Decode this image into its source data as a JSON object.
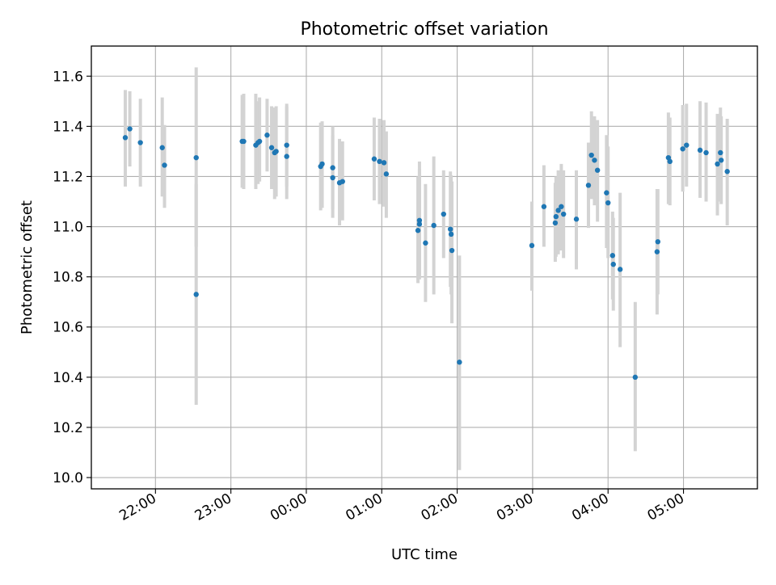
{
  "chart_data": {
    "type": "scatter",
    "title": "Photometric offset variation",
    "xlabel": "UTC time",
    "ylabel": "Photometric offset",
    "grid": true,
    "x_axis": {
      "unit": "hours since 00:00 UTC",
      "range": [
        -2.85,
        5.98
      ]
    },
    "xticks": [
      {
        "value": -2,
        "label": "22:00"
      },
      {
        "value": -1,
        "label": "23:00"
      },
      {
        "value": 0,
        "label": "00:00"
      },
      {
        "value": 1,
        "label": "01:00"
      },
      {
        "value": 2,
        "label": "02:00"
      },
      {
        "value": 3,
        "label": "03:00"
      },
      {
        "value": 4,
        "label": "04:00"
      },
      {
        "value": 5,
        "label": "05:00"
      }
    ],
    "ylim": [
      9.955,
      11.72
    ],
    "yticks": [
      {
        "value": 10.0,
        "label": "10.0"
      },
      {
        "value": 10.2,
        "label": "10.2"
      },
      {
        "value": 10.4,
        "label": "10.4"
      },
      {
        "value": 10.6,
        "label": "10.6"
      },
      {
        "value": 10.8,
        "label": "10.8"
      },
      {
        "value": 11.0,
        "label": "11.0"
      },
      {
        "value": 11.2,
        "label": "11.2"
      },
      {
        "value": 11.4,
        "label": "11.4"
      },
      {
        "value": 11.6,
        "label": "11.6"
      }
    ],
    "colors": {
      "marker": "#1f77b4",
      "errorbar": "#d3d3d3",
      "grid": "#b0b0b0"
    },
    "points": [
      {
        "x": -2.4,
        "y": 11.355,
        "lo": 11.16,
        "hi": 11.545
      },
      {
        "x": -2.34,
        "y": 11.39,
        "lo": 11.24,
        "hi": 11.54
      },
      {
        "x": -2.2,
        "y": 11.335,
        "lo": 11.16,
        "hi": 11.51
      },
      {
        "x": -1.91,
        "y": 11.315,
        "lo": 11.12,
        "hi": 11.515
      },
      {
        "x": -1.88,
        "y": 11.245,
        "lo": 11.075,
        "hi": 11.405
      },
      {
        "x": -1.46,
        "y": 11.275,
        "lo": 10.92,
        "hi": 11.635
      },
      {
        "x": -1.46,
        "y": 10.73,
        "lo": 10.29,
        "hi": 11.17
      },
      {
        "x": -0.85,
        "y": 11.34,
        "lo": 11.155,
        "hi": 11.525
      },
      {
        "x": -0.83,
        "y": 11.34,
        "lo": 11.15,
        "hi": 11.53
      },
      {
        "x": -0.67,
        "y": 11.325,
        "lo": 11.15,
        "hi": 11.53
      },
      {
        "x": -0.64,
        "y": 11.335,
        "lo": 11.17,
        "hi": 11.5
      },
      {
        "x": -0.62,
        "y": 11.34,
        "lo": 11.18,
        "hi": 11.515
      },
      {
        "x": -0.52,
        "y": 11.365,
        "lo": 11.22,
        "hi": 11.51
      },
      {
        "x": -0.46,
        "y": 11.315,
        "lo": 11.15,
        "hi": 11.48
      },
      {
        "x": -0.42,
        "y": 11.295,
        "lo": 11.11,
        "hi": 11.475
      },
      {
        "x": -0.4,
        "y": 11.3,
        "lo": 11.12,
        "hi": 11.48
      },
      {
        "x": -0.26,
        "y": 11.28,
        "lo": 11.11,
        "hi": 11.49
      },
      {
        "x": -0.26,
        "y": 11.325,
        "lo": 11.16,
        "hi": 11.48
      },
      {
        "x": 0.19,
        "y": 11.24,
        "lo": 11.065,
        "hi": 11.415
      },
      {
        "x": 0.21,
        "y": 11.25,
        "lo": 11.075,
        "hi": 11.42
      },
      {
        "x": 0.35,
        "y": 11.235,
        "lo": 11.07,
        "hi": 11.4
      },
      {
        "x": 0.35,
        "y": 11.195,
        "lo": 11.035,
        "hi": 11.365
      },
      {
        "x": 0.44,
        "y": 11.175,
        "lo": 11.005,
        "hi": 11.35
      },
      {
        "x": 0.48,
        "y": 11.18,
        "lo": 11.025,
        "hi": 11.34
      },
      {
        "x": 0.9,
        "y": 11.27,
        "lo": 11.105,
        "hi": 11.435
      },
      {
        "x": 0.97,
        "y": 11.26,
        "lo": 11.09,
        "hi": 11.43
      },
      {
        "x": 1.03,
        "y": 11.255,
        "lo": 11.08,
        "hi": 11.425
      },
      {
        "x": 1.06,
        "y": 11.21,
        "lo": 11.035,
        "hi": 11.38
      },
      {
        "x": 1.48,
        "y": 10.985,
        "lo": 10.775,
        "hi": 11.2
      },
      {
        "x": 1.5,
        "y": 11.025,
        "lo": 10.79,
        "hi": 11.26
      },
      {
        "x": 1.5,
        "y": 11.01,
        "lo": 10.8,
        "hi": 11.23
      },
      {
        "x": 1.58,
        "y": 10.935,
        "lo": 10.7,
        "hi": 11.17
      },
      {
        "x": 1.69,
        "y": 11.005,
        "lo": 10.73,
        "hi": 11.28
      },
      {
        "x": 1.82,
        "y": 11.05,
        "lo": 10.875,
        "hi": 11.225
      },
      {
        "x": 1.91,
        "y": 10.99,
        "lo": 10.76,
        "hi": 11.22
      },
      {
        "x": 1.92,
        "y": 10.97,
        "lo": 10.73,
        "hi": 11.205
      },
      {
        "x": 1.93,
        "y": 10.905,
        "lo": 10.615,
        "hi": 11.18
      },
      {
        "x": 2.03,
        "y": 10.46,
        "lo": 10.03,
        "hi": 10.885
      },
      {
        "x": 2.99,
        "y": 10.925,
        "lo": 10.745,
        "hi": 11.1
      },
      {
        "x": 3.15,
        "y": 11.08,
        "lo": 10.92,
        "hi": 11.245
      },
      {
        "x": 3.3,
        "y": 11.015,
        "lo": 10.86,
        "hi": 11.175
      },
      {
        "x": 3.31,
        "y": 11.04,
        "lo": 10.88,
        "hi": 11.2
      },
      {
        "x": 3.34,
        "y": 11.065,
        "lo": 10.89,
        "hi": 11.225
      },
      {
        "x": 3.38,
        "y": 11.08,
        "lo": 10.905,
        "hi": 11.25
      },
      {
        "x": 3.41,
        "y": 11.05,
        "lo": 10.875,
        "hi": 11.225
      },
      {
        "x": 3.58,
        "y": 11.03,
        "lo": 10.83,
        "hi": 11.225
      },
      {
        "x": 3.74,
        "y": 11.165,
        "lo": 10.995,
        "hi": 11.335
      },
      {
        "x": 3.78,
        "y": 11.285,
        "lo": 11.11,
        "hi": 11.46
      },
      {
        "x": 3.82,
        "y": 11.265,
        "lo": 11.085,
        "hi": 11.44
      },
      {
        "x": 3.86,
        "y": 11.225,
        "lo": 11.02,
        "hi": 11.425
      },
      {
        "x": 3.98,
        "y": 11.135,
        "lo": 10.915,
        "hi": 11.365
      },
      {
        "x": 4.0,
        "y": 11.095,
        "lo": 10.875,
        "hi": 11.32
      },
      {
        "x": 4.06,
        "y": 10.885,
        "lo": 10.71,
        "hi": 11.06
      },
      {
        "x": 4.07,
        "y": 10.85,
        "lo": 10.665,
        "hi": 11.035
      },
      {
        "x": 4.16,
        "y": 10.83,
        "lo": 10.52,
        "hi": 11.135
      },
      {
        "x": 4.36,
        "y": 10.4,
        "lo": 10.105,
        "hi": 10.7
      },
      {
        "x": 4.65,
        "y": 10.9,
        "lo": 10.65,
        "hi": 11.15
      },
      {
        "x": 4.66,
        "y": 10.94,
        "lo": 10.73,
        "hi": 11.15
      },
      {
        "x": 4.8,
        "y": 11.275,
        "lo": 11.09,
        "hi": 11.455
      },
      {
        "x": 4.82,
        "y": 11.26,
        "lo": 11.085,
        "hi": 11.435
      },
      {
        "x": 4.99,
        "y": 11.31,
        "lo": 11.14,
        "hi": 11.485
      },
      {
        "x": 5.04,
        "y": 11.325,
        "lo": 11.16,
        "hi": 11.49
      },
      {
        "x": 5.22,
        "y": 11.305,
        "lo": 11.115,
        "hi": 11.5
      },
      {
        "x": 5.3,
        "y": 11.295,
        "lo": 11.1,
        "hi": 11.495
      },
      {
        "x": 5.45,
        "y": 11.25,
        "lo": 11.045,
        "hi": 11.45
      },
      {
        "x": 5.49,
        "y": 11.295,
        "lo": 11.1,
        "hi": 11.475
      },
      {
        "x": 5.5,
        "y": 11.265,
        "lo": 11.09,
        "hi": 11.44
      },
      {
        "x": 5.58,
        "y": 11.22,
        "lo": 11.005,
        "hi": 11.43
      }
    ]
  }
}
